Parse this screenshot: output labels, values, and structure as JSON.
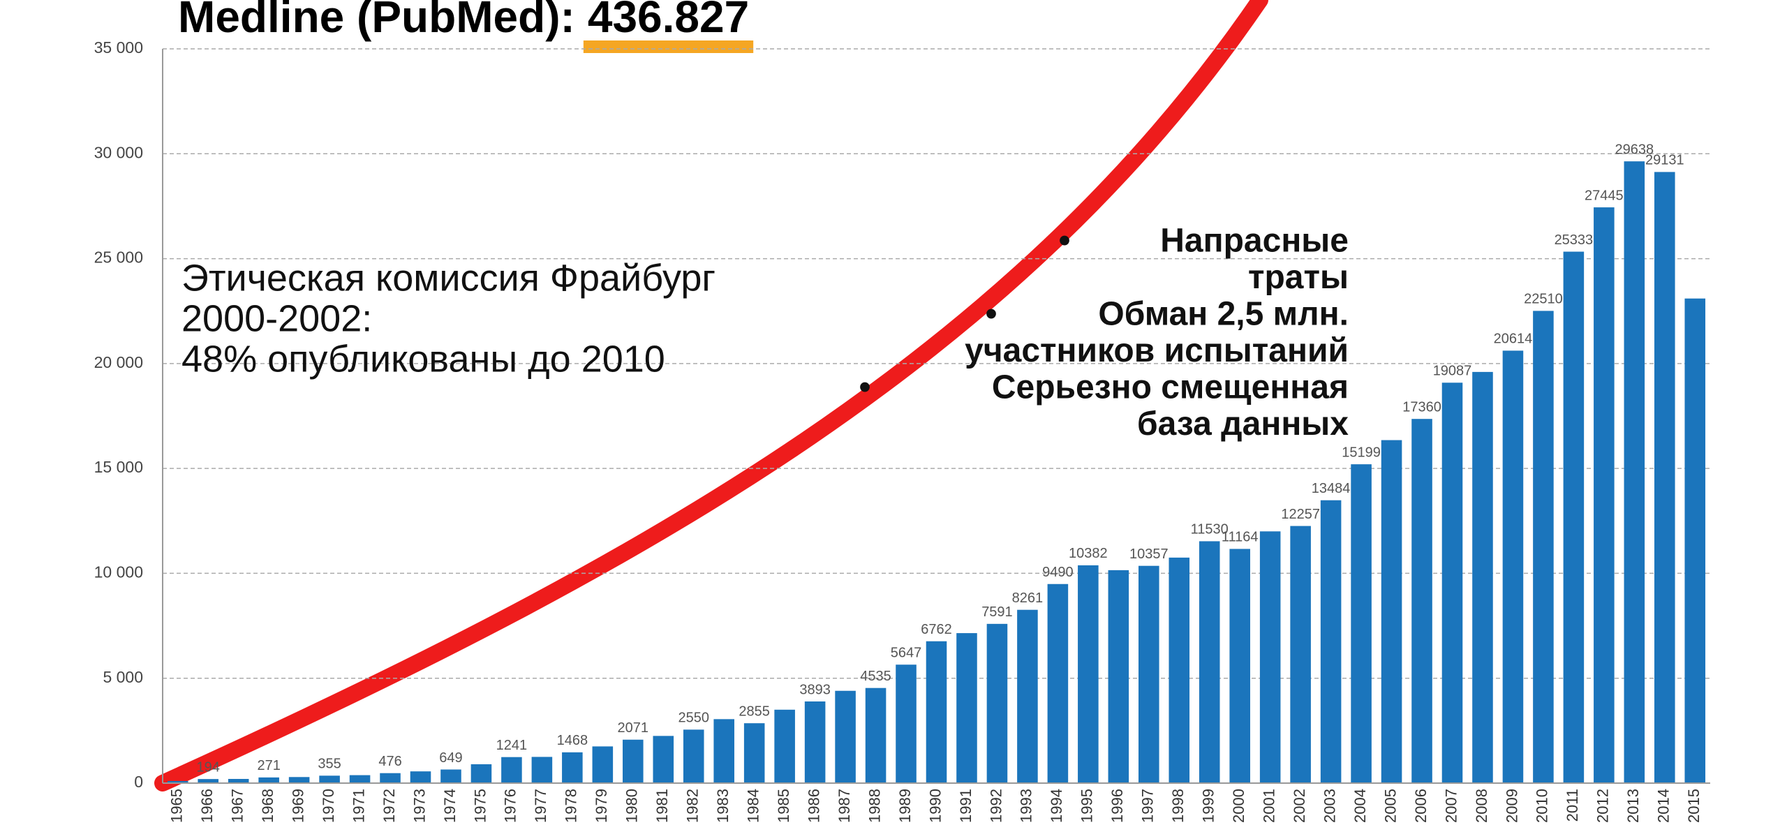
{
  "chart_data": {
    "type": "bar",
    "title": "Medline (PubMed):",
    "title_highlight": "436.827",
    "annotation": [
      "Этическая комиссия Фрайбург",
      "2000-2002:",
      "48% опубликованы до 2010"
    ],
    "bullets": [
      [
        "Напрасные",
        "траты"
      ],
      [
        "Обман 2,5 млн.",
        "участников испытаний"
      ],
      [
        "Серьезно смещенная",
        "база данных"
      ]
    ],
    "bullet_symbol": "•",
    "categories": [
      "1965",
      "1966",
      "1967",
      "1968",
      "1969",
      "1970",
      "1971",
      "1972",
      "1973",
      "1974",
      "1975",
      "1976",
      "1977",
      "1978",
      "1979",
      "1980",
      "1981",
      "1982",
      "1983",
      "1984",
      "1985",
      "1986",
      "1987",
      "1988",
      "1989",
      "1990",
      "1991",
      "1992",
      "1993",
      "1994",
      "1995",
      "1996",
      "1997",
      "1998",
      "1999",
      "2000",
      "2001",
      "2002",
      "2003",
      "2004",
      "2005",
      "2006",
      "2007",
      "2008",
      "2009",
      "2010",
      "2011",
      "2012",
      "2013",
      "2014",
      "2015"
    ],
    "values": [
      100,
      194,
      200,
      271,
      290,
      355,
      380,
      476,
      560,
      649,
      900,
      1241,
      1250,
      1468,
      1750,
      2071,
      2250,
      2550,
      3050,
      2855,
      3500,
      3893,
      4400,
      4535,
      5647,
      6762,
      7150,
      7591,
      8261,
      9490,
      10382,
      10150,
      10357,
      10750,
      11530,
      11164,
      12000,
      12257,
      13484,
      15199,
      16350,
      17360,
      19087,
      19600,
      20614,
      22510,
      25333,
      27445,
      29638,
      29131,
      23100
    ],
    "value_labels": [
      null,
      "194",
      null,
      "271",
      null,
      "355",
      null,
      "476",
      null,
      "649",
      null,
      "1241",
      null,
      "1468",
      null,
      "2071",
      null,
      "2550",
      null,
      "2855",
      null,
      "3893",
      null,
      "4535",
      "5647",
      "6762",
      null,
      "7591",
      "8261",
      "9490",
      "10382",
      null,
      "10357",
      null,
      "11530",
      "11164",
      null,
      "12257",
      "13484",
      "15199",
      null,
      "17360",
      "19087",
      null,
      "20614",
      "22510",
      "25333",
      "27445",
      "29638",
      "29131",
      null
    ],
    "color": "#1b75bc",
    "ylim": [
      0,
      35000
    ],
    "yticks": [
      0,
      {
        "value": 5000,
        "label": "5 000"
      },
      {
        "value": 10000,
        "label": "10 000"
      },
      {
        "value": 15000,
        "label": "15 000"
      },
      {
        "value": 20000,
        "label": "20 000"
      },
      {
        "value": 25000,
        "label": "25 000"
      },
      {
        "value": 30000,
        "label": "30 000"
      },
      {
        "value": 35000,
        "label": "35 000"
      }
    ],
    "grid": true
  }
}
